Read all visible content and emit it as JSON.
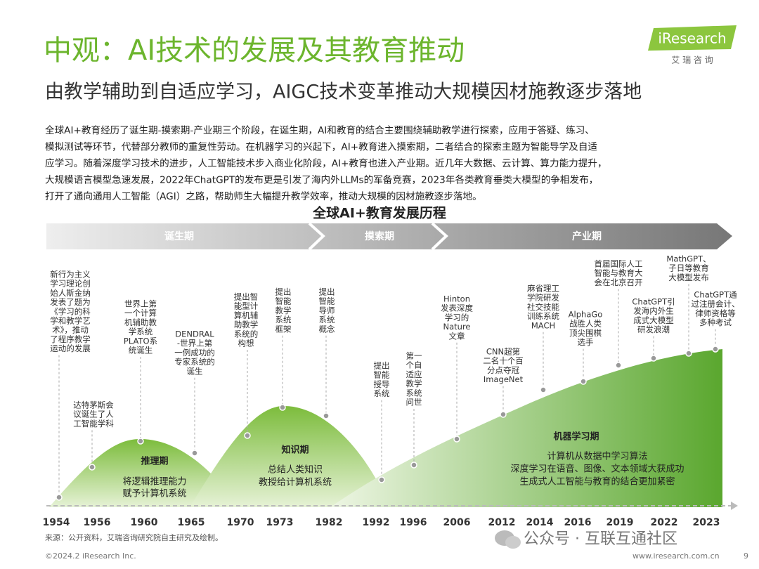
{
  "header": {
    "title": "中观：AI技术的发展及其教育推动",
    "subtitle": "由教学辅助到自适应学习，AIGC技术变革推动大规模因材施教逐步落地",
    "logo": "iResearch",
    "logo_sub": "艾 瑞 咨 询"
  },
  "body": {
    "lines": [
      "全球AI+教育经历了诞生期-摸索期-产业期三个阶段，在诞生期，AI和教育的结合主要围绕辅助教学进行探索，应用于答疑、练习、",
      "模拟测试等环节，代替部分教师的重复性劳动。在机器学习的兴起下，AI+教育进入摸索期，二者结合的探索主题为智能导学及自适",
      "应学习。随着深度学习技术的进步，人工智能技术步入商业化阶段，AI+教育也进入产业期。近几年大数据、云计算、算力能力提升，",
      "大规模语言模型急速发展，2022年ChatGPT的发布更是引发了海内外LLMs的军备竞赛，2023年各类教育垂类大模型的争相发布，",
      "打开了通向通用人工智能（AGI）之路，帮助师生大幅提升教学效率，推动大规模的因材施教逐步落地。"
    ]
  },
  "timeline": {
    "title": "全球AI+教育发展历程",
    "phases": [
      "诞生期",
      "摸索期",
      "产业期"
    ],
    "stages": [
      {
        "name": "推理期",
        "lines": [
          "将逻辑推理能力",
          "赋予计算机系统"
        ]
      },
      {
        "name": "知识期",
        "lines": [
          "总结人类知识",
          "教授给计算机系统"
        ]
      },
      {
        "name": "机器学习期",
        "lines": [
          "计算机从数据中学习算法",
          "深度学习在语音、图像、文本领域大获成功",
          "生成式人工智能与教育的结合更加紧密"
        ]
      }
    ],
    "events": [
      [
        "新行为主义",
        "学习理论创",
        "始人斯金纳",
        "发表了题为",
        "《学习的科",
        "学和教学艺",
        "术》，推动",
        "了程序教学",
        "运动的发展"
      ],
      [
        "达特茅斯会",
        "议诞生了人",
        "工智能学科"
      ],
      [
        "世界上第",
        "一个计算",
        "机辅助教",
        "学系统",
        "PLATO系",
        "统诞生"
      ],
      [
        "DENDRAL",
        "-世界上第",
        "一例成功的",
        "专家系统的",
        "诞生"
      ],
      [
        "提出智",
        "能型计",
        "算机辅",
        "助教学",
        "系统的",
        "构想"
      ],
      [
        "提出",
        "智能",
        "教学",
        "系统",
        "框架"
      ],
      [
        "提出",
        "智能",
        "导师",
        "系统",
        "概念"
      ],
      [
        "提出",
        "智能",
        "授导",
        "系统"
      ],
      [
        "第一",
        "个自",
        "适应",
        "教学",
        "系统",
        "问世"
      ],
      [
        "Hinton",
        "发表深度",
        "学习的",
        "Nature",
        "文章"
      ],
      [
        "CNN超第",
        "二名十个百",
        "分点夺冠",
        "ImageNet"
      ],
      [
        "麻省理工",
        "学院研发",
        "社交技能",
        "训练系统",
        "MACH"
      ],
      [
        "AlphaGo",
        "战胜人类",
        "顶尖围棋",
        "选手"
      ],
      [
        "首届国际人工",
        "智能与教育大",
        "会在北京召开"
      ],
      [
        "ChatGPT引",
        "发海内外生",
        "成式大模型",
        "研发浪潮"
      ],
      [
        "MathGPT、",
        "子日等教育",
        "大模型发布"
      ],
      [
        "ChatGPT通",
        "过注册会计、",
        "律师资格等",
        "多种考试"
      ]
    ],
    "years": [
      "1954",
      "1956",
      "1960",
      "1965",
      "1970",
      "1973",
      "1982",
      "1992",
      "1996",
      "2006",
      "2012",
      "2014",
      "2016",
      "2019",
      "2022",
      "2023"
    ]
  },
  "footer": {
    "source": "来源：公开资料，艾瑞咨询研究院自主研究及绘制。",
    "copyright": "©2024.2 iResearch Inc.",
    "website": "www.iresearch.com.cn",
    "page": "9",
    "watermark": "公众号 · 互联互通社区"
  }
}
